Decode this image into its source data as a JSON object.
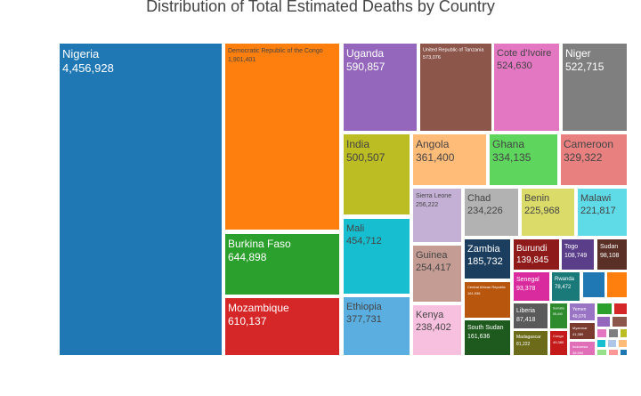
{
  "chart_data": {
    "type": "treemap",
    "title": "Distribution of Total Estimated Deaths by Country",
    "xlabel": "",
    "ylabel": "",
    "grid": false,
    "legend": "none",
    "tiles": [
      {
        "label": "Nigeria",
        "value": "4,456,928",
        "color": "#1f77b4"
      },
      {
        "label": "Democratic Republic of the Congo",
        "value": "1,901,401",
        "color": "#ff7f0e"
      },
      {
        "label": "Burkina Faso",
        "value": "644,898",
        "color": "#2ca02c"
      },
      {
        "label": "Mozambique",
        "value": "610,137",
        "color": "#d62728"
      },
      {
        "label": "Uganda",
        "value": "590,857",
        "color": "#9467bd"
      },
      {
        "label": "United Republic of Tanzania",
        "value": "573,076",
        "color": "#8c564b"
      },
      {
        "label": "Cote d'Ivoire",
        "value": "524,630",
        "color": "#e377c2"
      },
      {
        "label": "Niger",
        "value": "522,715",
        "color": "#7f7f7f"
      },
      {
        "label": "India",
        "value": "500,507",
        "color": "#bcbd22"
      },
      {
        "label": "Mali",
        "value": "454,712",
        "color": "#17becf"
      },
      {
        "label": "Ethiopia",
        "value": "377,731",
        "color": "#5aaee0"
      },
      {
        "label": "Angola",
        "value": "361,400",
        "color": "#ffbb78"
      },
      {
        "label": "Ghana",
        "value": "334,135",
        "color": "#5ed65e"
      },
      {
        "label": "Cameroon",
        "value": "329,322",
        "color": "#e88080"
      },
      {
        "label": "Sierra Leone",
        "value": "256,222",
        "color": "#c5b0d5"
      },
      {
        "label": "Guinea",
        "value": "254,417",
        "color": "#c49c94"
      },
      {
        "label": "Kenya",
        "value": "238,402",
        "color": "#f7c0df"
      },
      {
        "label": "Chad",
        "value": "234,226",
        "color": "#b2b2b2"
      },
      {
        "label": "Benin",
        "value": "225,968",
        "color": "#dbdb6a"
      },
      {
        "label": "Malawi",
        "value": "221,817",
        "color": "#5fdbe8"
      },
      {
        "label": "Zambia",
        "value": "185,732",
        "color": "#1c3e5e"
      },
      {
        "label": "Burundi",
        "value": "139,845",
        "color": "#8e1a1a"
      },
      {
        "label": "Togo",
        "value": "108,749",
        "color": "#5a3e8a"
      },
      {
        "label": "Sudan",
        "value": "98,108",
        "color": "#5a3026"
      },
      {
        "label": "Central African Republic",
        "value": "161,936",
        "color": "#b8560e"
      },
      {
        "label": "Senegal",
        "value": "93,378",
        "color": "#d92a9e"
      },
      {
        "label": "Rwanda",
        "value": "78,472",
        "color": "#1a7a7a"
      },
      {
        "label": "South Sudan",
        "value": "161,636",
        "color": "#1e5a1e"
      },
      {
        "label": "Liberia",
        "value": "87,418",
        "color": "#5a5a5a"
      },
      {
        "label": "Madagascar",
        "value": "81,222",
        "color": "#6b6b1a"
      },
      {
        "label": "Somalia",
        "value": "55,440",
        "color": "#2e8b2e"
      },
      {
        "label": "Yemen",
        "value": "49,076",
        "color": "#9a74c4"
      },
      {
        "label": "Congo",
        "value": "49,380",
        "color": "#c41a1a"
      },
      {
        "label": "Myanmar",
        "value": "41,389",
        "color": "#7a3a2e"
      },
      {
        "label": "Indonesia",
        "value": "38,900",
        "color": "#e06fb8"
      }
    ]
  }
}
